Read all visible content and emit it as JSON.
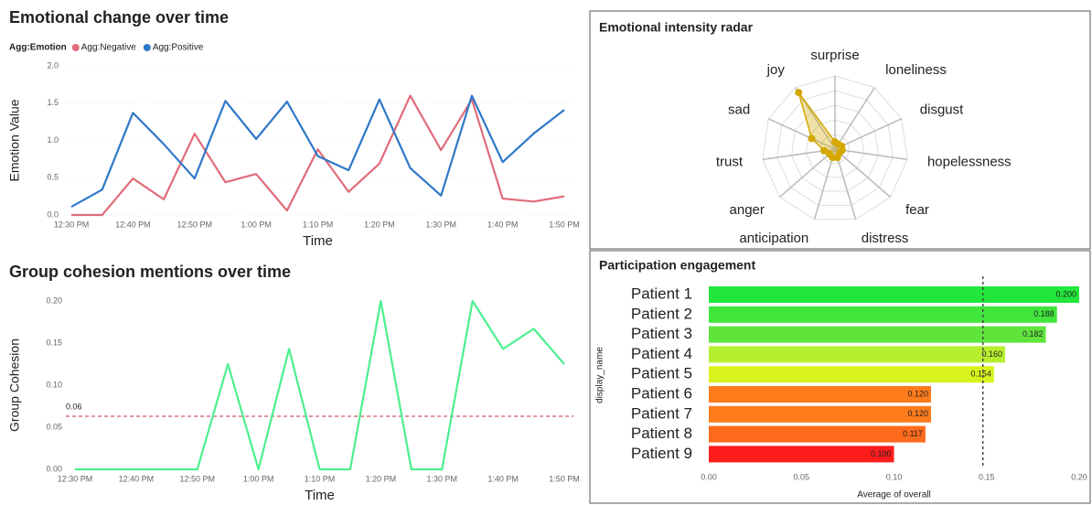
{
  "chart_data": [
    {
      "type": "line",
      "title": "Emotional change over time",
      "legend_title": "Agg:Emotion",
      "x_label": "Time",
      "y_label": "Emotion Value",
      "categories": [
        "12:30 PM",
        null,
        "12:40 PM",
        null,
        "12:50 PM",
        null,
        "1:00 PM",
        null,
        "1:10 PM",
        null,
        "1:20 PM",
        null,
        "1:30 PM",
        null,
        "1:40 PM",
        null,
        "1:50 PM"
      ],
      "series": [
        {
          "name": "Agg:Negative",
          "color": "#e06c7a",
          "values": [
            0,
            0,
            0.49,
            0.21,
            1.09,
            0.44,
            0.55,
            0.06,
            0.88,
            0.31,
            0.69,
            1.6,
            0.87,
            1.55,
            0.22,
            0.18,
            0.25
          ]
        },
        {
          "name": "Agg:Positive",
          "color": "#2f78c8",
          "values": [
            0.11,
            0.34,
            1.37,
            0.95,
            0.49,
            1.53,
            1.02,
            1.52,
            0.79,
            0.6,
            1.55,
            0.63,
            0.26,
            1.6,
            0.71,
            1.09,
            1.41
          ]
        }
      ],
      "ylim": [
        0,
        2
      ],
      "yticks": [
        {
          "value": 0,
          "label": "0.0"
        },
        0.5,
        {
          "value": 1,
          "label": "1.0"
        },
        1.5,
        {
          "value": 2,
          "label": "2.0"
        }
      ],
      "grid": true
    },
    {
      "type": "line",
      "title": "Group cohesion mentions over time",
      "x_label": "Time",
      "y_label": "Group Cohesion",
      "categories": [
        "12:30 PM",
        null,
        "12:40 PM",
        null,
        "12:50 PM",
        null,
        "1:00 PM",
        null,
        "1:10 PM",
        null,
        "1:20 PM",
        null,
        "1:30 PM",
        null,
        "1:40 PM",
        null,
        "1:50 PM"
      ],
      "color": "#4cf08e",
      "values": [
        0,
        0,
        0,
        0,
        0,
        0.125,
        0,
        0.143,
        0,
        0,
        0.2,
        0,
        0,
        0.2,
        0.143,
        0.167,
        0.125
      ],
      "ylim": [
        0,
        0.2
      ],
      "yticks": [
        {
          "value": 0,
          "label": "0.00"
        },
        0.05,
        {
          "value": 0.1,
          "label": "0.10"
        },
        0.15,
        {
          "value": 0.2,
          "label": "0.20"
        }
      ],
      "reference_line": {
        "value": 0.063,
        "label": "0.06"
      },
      "reference_color": "#d9737a",
      "grid": false
    },
    {
      "type": "radar",
      "title": "Emotional intensity radar",
      "categories": [
        "surprise",
        "loneliness",
        "disgust",
        "hopelessness",
        "fear",
        "distress",
        "anticipation",
        "anger",
        "trust",
        "sad",
        "joy"
      ],
      "values": [
        0.1,
        0.08,
        0.1,
        0.1,
        0.08,
        0.12,
        0.12,
        0.1,
        0.15,
        0.35,
        0.92
      ],
      "rlim": [
        0,
        1
      ],
      "color": "#d4a800"
    },
    {
      "type": "barh",
      "title": "Participation engagement",
      "x_label": "Average of overall",
      "y_label": "display_name",
      "categories": [
        "Patient 1",
        "Patient 2",
        "Patient 3",
        "Patient 4",
        "Patient 5",
        "Patient 6",
        "Patient 7",
        "Patient 8",
        "Patient 9"
      ],
      "values": [
        0.2,
        0.188,
        0.182,
        0.16,
        0.154,
        0.12,
        0.12,
        0.117,
        0.1
      ],
      "value_labels": [
        "0.200",
        "0.188",
        "0.182",
        "0.160",
        "0.154",
        "0.120",
        "0.120",
        "0.117",
        "0.100"
      ],
      "colors": [
        "#22e63c",
        "#40e63c",
        "#5fe43c",
        "#b6ef30",
        "#d8f31e",
        "#ff7b1c",
        "#ff7b1c",
        "#ff6a1c",
        "#ff1c1c"
      ],
      "xlim": [
        0,
        0.2
      ],
      "xticks": [
        {
          "value": 0,
          "label": "0.00"
        },
        0.05,
        {
          "value": 0.1,
          "label": "0.10"
        },
        0.15,
        {
          "value": 0.2,
          "label": "0.20"
        }
      ],
      "reference_line": 0.148
    }
  ]
}
